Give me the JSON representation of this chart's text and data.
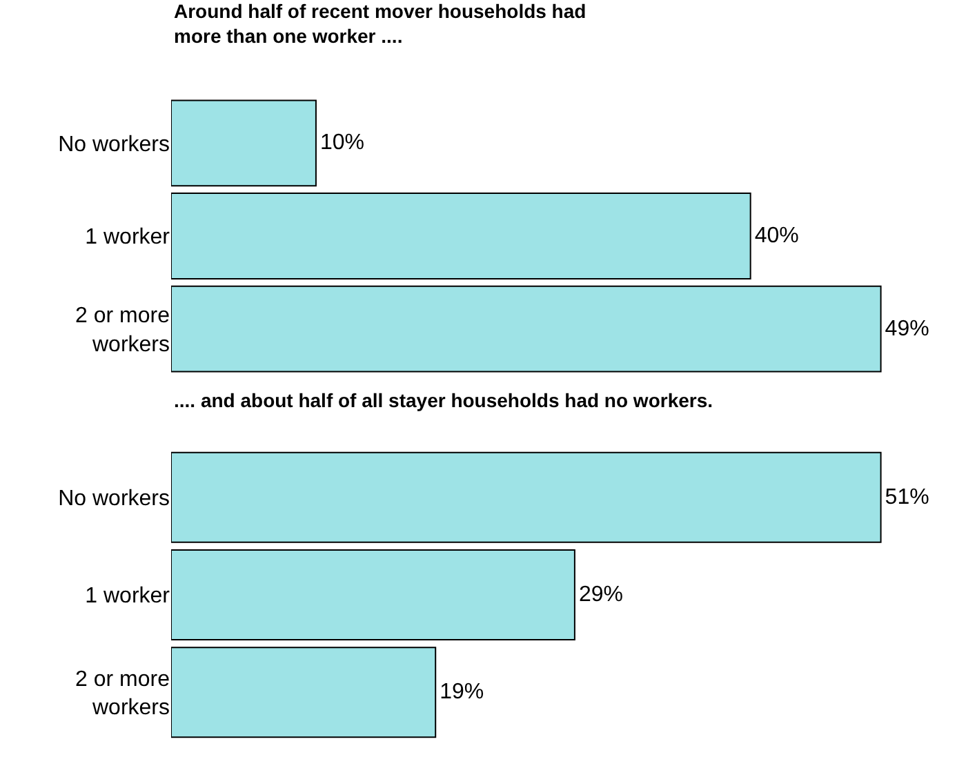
{
  "chart_data": [
    {
      "type": "bar",
      "orientation": "horizontal",
      "title": "Around half of recent mover households had\nmore than one worker ....",
      "categories": [
        "No workers",
        "1 worker",
        "2 or more workers"
      ],
      "values": [
        10,
        40,
        49
      ],
      "color": "#9ee3e6",
      "value_labels": [
        "10%",
        "40%",
        "49%"
      ]
    },
    {
      "type": "bar",
      "orientation": "horizontal",
      "title": ".... and about half of all stayer households had no workers.",
      "categories": [
        "No workers",
        "1 worker",
        "2 or more workers"
      ],
      "values": [
        51,
        29,
        19
      ],
      "color": "#9ee3e6",
      "value_labels": [
        "51%",
        "29%",
        "19%"
      ]
    }
  ]
}
